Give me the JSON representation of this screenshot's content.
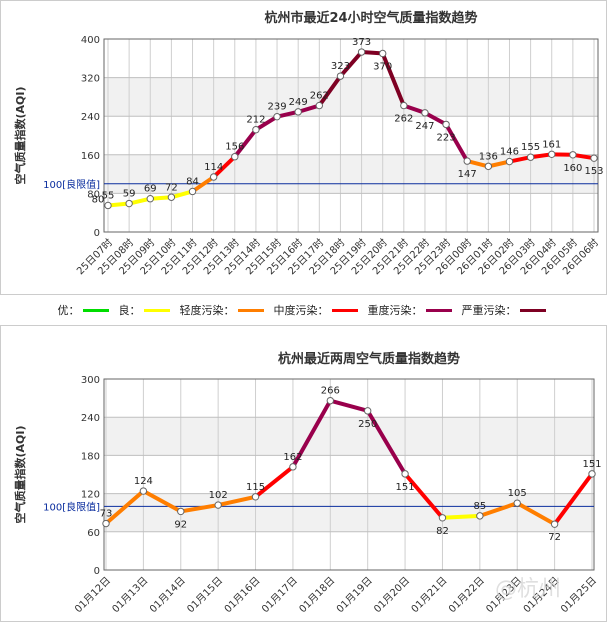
{
  "chart_data": [
    {
      "type": "line",
      "title": "杭州市最近24小时空气质量指数趋势",
      "ylabel": "空气质量指数(AQI)",
      "ylim": [
        0,
        400
      ],
      "yticks": [
        0,
        80,
        160,
        240,
        320,
        400
      ],
      "limit_value": 100,
      "limit_label": "100[良限值]",
      "categories": [
        "25日07时",
        "25日08时",
        "25日09时",
        "25日10时",
        "25日11时",
        "25日12时",
        "25日13时",
        "25日14时",
        "25日15时",
        "25日16时",
        "25日17时",
        "25日18时",
        "25日19时",
        "25日20时",
        "25日21时",
        "25日22时",
        "25日23时",
        "26日00时",
        "26日01时",
        "26日02时",
        "26日03时",
        "26日04时",
        "26日05时",
        "26日06时"
      ],
      "values": [
        55,
        59,
        69,
        72,
        84,
        114,
        156,
        212,
        239,
        249,
        262,
        323,
        373,
        370,
        262,
        247,
        223,
        147,
        136,
        146,
        155,
        161,
        160,
        153
      ],
      "extra_labels": [
        "80"
      ]
    },
    {
      "type": "line",
      "title": "杭州最近两周空气质量指数趋势",
      "ylabel": "空气质量指数(AQI)",
      "ylim": [
        0,
        300
      ],
      "yticks": [
        0,
        60,
        120,
        180,
        240,
        300
      ],
      "limit_value": 100,
      "limit_label": "100[良限值]",
      "categories": [
        "01月12日",
        "01月13日",
        "01月14日",
        "01月15日",
        "01月16日",
        "01月17日",
        "01月18日",
        "01月19日",
        "01月20日",
        "01月21日",
        "01月22日",
        "01月23日",
        "01月24日",
        "01月25日"
      ],
      "values": [
        73,
        124,
        92,
        102,
        115,
        162,
        266,
        250,
        151,
        82,
        85,
        105,
        72,
        151
      ]
    }
  ],
  "legend": {
    "items": [
      {
        "label": "优：",
        "color": "#00dd00"
      },
      {
        "label": "良：",
        "color": "#ffff00"
      },
      {
        "label": "轻度污染：",
        "color": "#ff7e00"
      },
      {
        "label": "中度污染：",
        "color": "#ff0000"
      },
      {
        "label": "重度污染：",
        "color": "#99004c"
      },
      {
        "label": "严重污染：",
        "color": "#7e0023"
      }
    ]
  },
  "level_colors": {
    "good": "#00dd00",
    "moderate": "#ffff00",
    "light": "#ff7e00",
    "medium": "#ff0000",
    "heavy": "#99004c",
    "severe": "#7e0023"
  },
  "watermark": "@杭州"
}
